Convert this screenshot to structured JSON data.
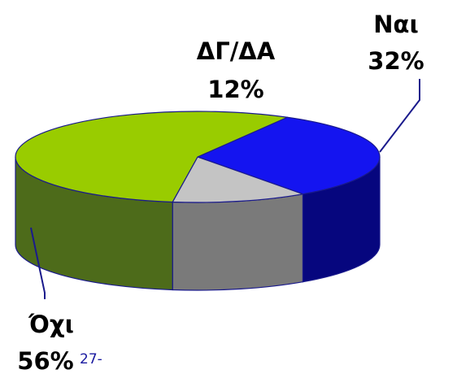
{
  "chart_data": {
    "type": "pie",
    "style": "3d-exploded-none",
    "slices": [
      {
        "name": "Ναι",
        "value": 32,
        "label": "32%",
        "color": "#1414f0",
        "side_color": "#06067e"
      },
      {
        "name": "ΔΓ/ΔΑ",
        "value": 12,
        "label": "12%",
        "color": "#c4c4c4",
        "side_color": "#7a7a7a"
      },
      {
        "name": "Όχι",
        "value": 56,
        "label": "56%",
        "color": "#99cc00",
        "side_color": "#4d6b1a"
      }
    ],
    "legend": "none",
    "leader_line_color": "#1a1a8c",
    "edge_color": "#1a1a8c"
  },
  "page_number": "27-"
}
